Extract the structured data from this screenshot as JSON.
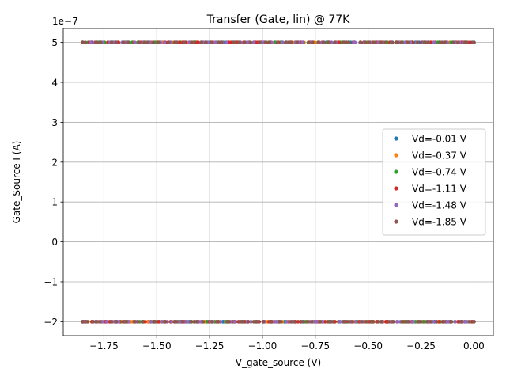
{
  "chart_data": {
    "type": "scatter",
    "title": "Transfer (Gate, lin) @ 77K",
    "xlabel": "V_gate_source (V)",
    "ylabel": "Gate_Source I (A)",
    "y_offset_text": "1e−7",
    "xlim": [
      -1.942,
      0.092
    ],
    "ylim": [
      -2.35,
      5.35
    ],
    "y_units_multiplier": 1e-07,
    "grid": true,
    "legend_placement": "center-right",
    "x_ticks": [
      -1.75,
      -1.5,
      -1.25,
      -1.0,
      -0.75,
      -0.5,
      -0.25,
      0.0
    ],
    "x_tick_labels": [
      "−1.75",
      "−1.50",
      "−1.25",
      "−1.00",
      "−0.75",
      "−0.50",
      "−0.25",
      "0.00"
    ],
    "y_ticks": [
      -2,
      -1,
      0,
      1,
      2,
      3,
      4,
      5
    ],
    "y_tick_labels": [
      "−2",
      "−1",
      "0",
      "1",
      "2",
      "3",
      "4",
      "5"
    ],
    "x_range": [
      -1.85,
      0.0
    ],
    "levels": [
      5,
      -2
    ],
    "points_per_level": 75,
    "series": [
      {
        "name": "Vd=-0.01 V",
        "color": "#1f77b4"
      },
      {
        "name": "Vd=-0.37 V",
        "color": "#ff7f0e"
      },
      {
        "name": "Vd=-0.74 V",
        "color": "#2ca02c"
      },
      {
        "name": "Vd=-1.11 V",
        "color": "#d62728"
      },
      {
        "name": "Vd=-1.48 V",
        "color": "#9467bd"
      },
      {
        "name": "Vd=-1.85 V",
        "color": "#8c564b"
      }
    ]
  }
}
